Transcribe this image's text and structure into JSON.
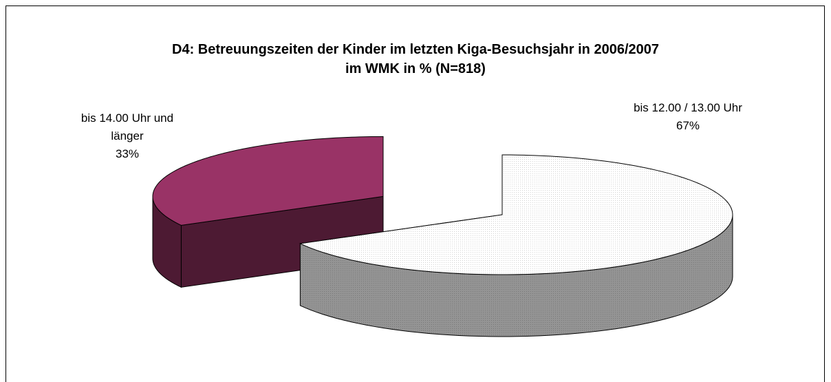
{
  "chart_data": {
    "type": "pie3d",
    "title": "D4: Betreuungszeiten der Kinder im letzten Kiga-Besuchsjahr in 2006/2007\nim WMK in % (N=818)",
    "categories": [
      "bis 12.00 / 13.00 Uhr",
      "bis 14.00 Uhr und\nlänger"
    ],
    "values": [
      67,
      33
    ],
    "value_labels": [
      "67%",
      "33%"
    ],
    "colors": [
      "#ffffff",
      "#993366"
    ]
  }
}
